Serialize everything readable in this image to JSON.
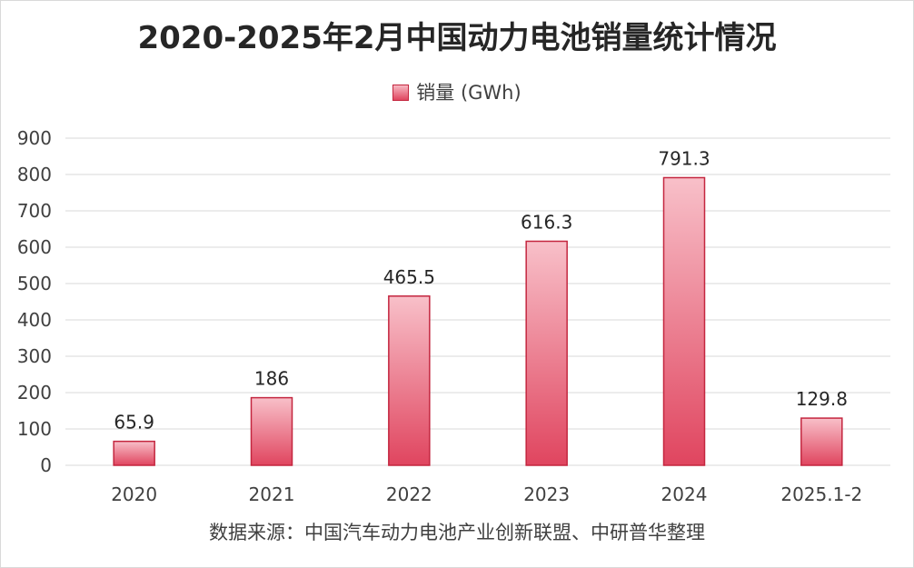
{
  "colors": {
    "bar_top": "#f8c0c9",
    "bar_bottom": "#e0455f",
    "bar_border": "#c4263f",
    "grid": "#d9d9d9",
    "text": "#404040"
  },
  "source_note": "数据来源：中国汽车动力电池产业创新联盟、中研普华整理",
  "chart_data": {
    "type": "bar",
    "title": "2020-2025年2月中国动力电池销量统计情况",
    "categories": [
      "2020",
      "2021",
      "2022",
      "2023",
      "2024",
      "2025.1-2"
    ],
    "series": [
      {
        "name": "销量 (GWh)",
        "values": [
          65.9,
          186,
          465.5,
          616.3,
          791.3,
          129.8
        ],
        "labels": [
          "65.9",
          "186",
          "465.5",
          "616.3",
          "791.3",
          "129.8"
        ]
      }
    ],
    "ylim": [
      0,
      900
    ],
    "yticks": [
      0,
      100,
      200,
      300,
      400,
      500,
      600,
      700,
      800,
      900
    ],
    "grid": true,
    "legend_position": "top-center"
  }
}
